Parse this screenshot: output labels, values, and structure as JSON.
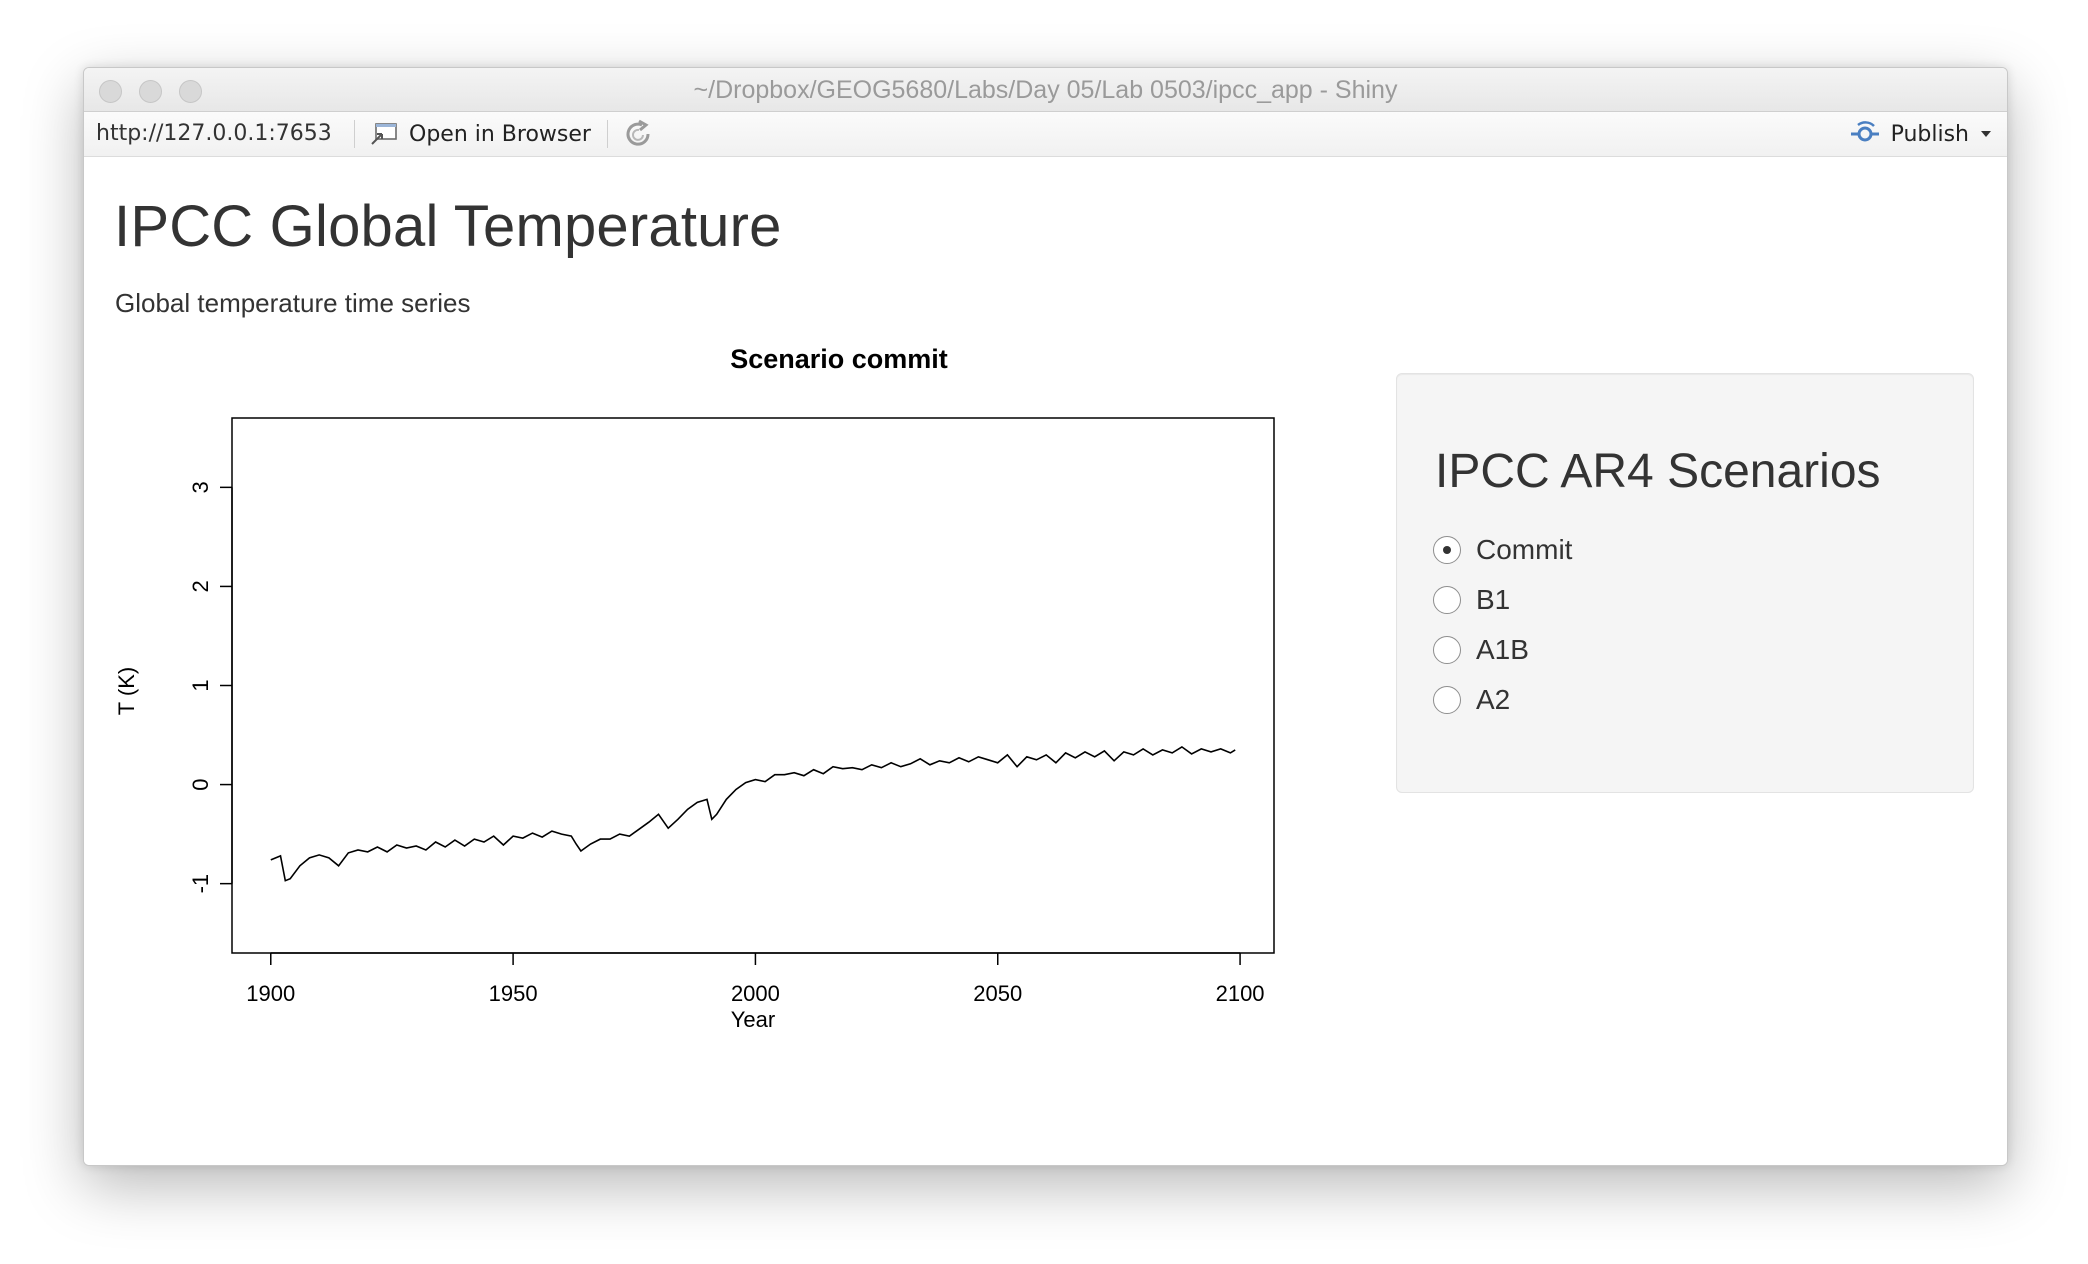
{
  "window": {
    "title": "~/Dropbox/GEOG5680/Labs/Day 05/Lab 0503/ipcc_app - Shiny"
  },
  "toolbar": {
    "url": "http://127.0.0.1:7653",
    "open_in_browser": "Open in Browser",
    "publish": "Publish",
    "icons": [
      "open-in-browser-icon",
      "refresh-icon",
      "publish-icon",
      "chevron-down-icon"
    ],
    "publish_icon_color": "#4a7fc1"
  },
  "page": {
    "title": "IPCC Global Temperature",
    "subtitle": "Global temperature time series"
  },
  "sidebar": {
    "title": "IPCC AR4 Scenarios",
    "options": [
      {
        "label": "Commit",
        "selected": true
      },
      {
        "label": "B1",
        "selected": false
      },
      {
        "label": "A1B",
        "selected": false
      },
      {
        "label": "A2",
        "selected": false
      }
    ]
  },
  "chart_data": {
    "type": "line",
    "title": "Scenario commit",
    "xlabel": "Year",
    "ylabel": "T (K)",
    "xlim": [
      1892,
      2107
    ],
    "ylim": [
      -1.7,
      3.7
    ],
    "x_ticks": [
      1900,
      1950,
      2000,
      2050,
      2100
    ],
    "y_ticks": [
      -1,
      0,
      1,
      2,
      3
    ],
    "grid": false,
    "series": [
      {
        "x": [
          1900,
          1902,
          1903,
          1904,
          1906,
          1908,
          1910,
          1912,
          1914,
          1916,
          1918,
          1920,
          1922,
          1924,
          1926,
          1928,
          1930,
          1932,
          1934,
          1936,
          1938,
          1940,
          1942,
          1944,
          1946,
          1948,
          1950,
          1952,
          1954,
          1956,
          1958,
          1960,
          1962,
          1963,
          1964,
          1966,
          1968,
          1970,
          1972,
          1974,
          1976,
          1978,
          1980,
          1982,
          1984,
          1986,
          1988,
          1990,
          1991,
          1992,
          1994,
          1996,
          1998,
          2000,
          2002,
          2004,
          2006,
          2008,
          2010,
          2012,
          2014,
          2016,
          2018,
          2020,
          2022,
          2024,
          2026,
          2028,
          2030,
          2032,
          2034,
          2036,
          2038,
          2040,
          2042,
          2044,
          2046,
          2048,
          2050,
          2052,
          2054,
          2056,
          2058,
          2060,
          2062,
          2064,
          2066,
          2068,
          2070,
          2072,
          2074,
          2076,
          2078,
          2080,
          2082,
          2084,
          2086,
          2088,
          2090,
          2092,
          2094,
          2096,
          2098,
          2099
        ],
        "y": [
          -0.76,
          -0.72,
          -0.97,
          -0.95,
          -0.82,
          -0.74,
          -0.71,
          -0.74,
          -0.82,
          -0.69,
          -0.66,
          -0.68,
          -0.63,
          -0.68,
          -0.61,
          -0.64,
          -0.62,
          -0.66,
          -0.58,
          -0.63,
          -0.56,
          -0.62,
          -0.55,
          -0.58,
          -0.52,
          -0.61,
          -0.52,
          -0.54,
          -0.49,
          -0.53,
          -0.47,
          -0.5,
          -0.52,
          -0.6,
          -0.67,
          -0.6,
          -0.55,
          -0.55,
          -0.5,
          -0.52,
          -0.45,
          -0.38,
          -0.3,
          -0.44,
          -0.35,
          -0.25,
          -0.18,
          -0.15,
          -0.35,
          -0.3,
          -0.15,
          -0.05,
          0.02,
          0.05,
          0.03,
          0.1,
          0.1,
          0.12,
          0.09,
          0.15,
          0.11,
          0.18,
          0.16,
          0.17,
          0.15,
          0.2,
          0.17,
          0.22,
          0.18,
          0.21,
          0.26,
          0.2,
          0.24,
          0.22,
          0.27,
          0.23,
          0.28,
          0.25,
          0.22,
          0.3,
          0.18,
          0.28,
          0.25,
          0.3,
          0.22,
          0.32,
          0.27,
          0.33,
          0.28,
          0.34,
          0.24,
          0.33,
          0.3,
          0.36,
          0.3,
          0.35,
          0.32,
          0.38,
          0.31,
          0.36,
          0.33,
          0.36,
          0.32,
          0.35
        ]
      }
    ]
  }
}
